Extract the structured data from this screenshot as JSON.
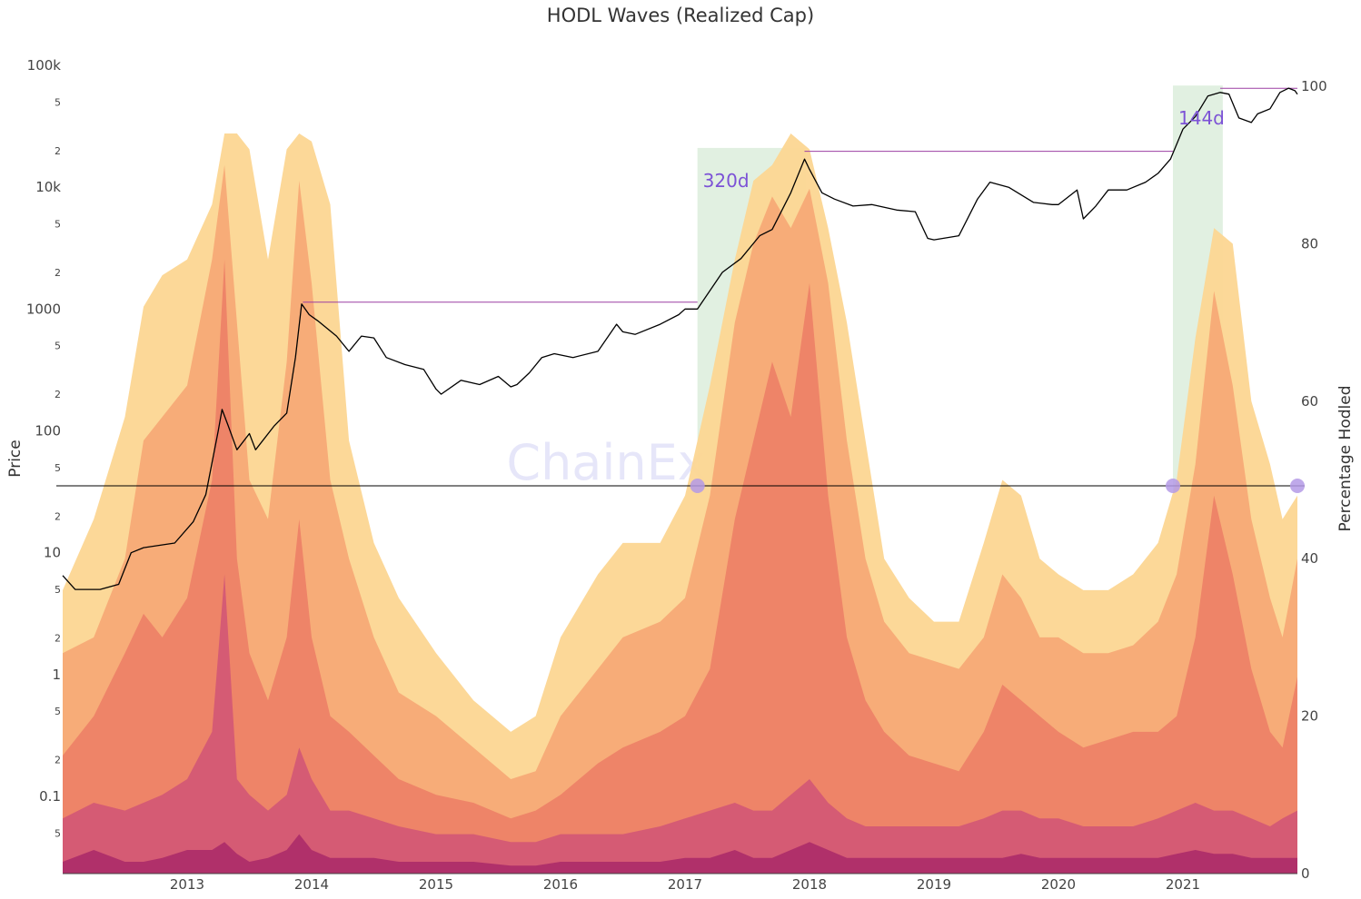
{
  "chart_data": {
    "type": "area",
    "title": "HODL Waves (Realized Cap)",
    "watermark": "ChainExposed",
    "y_left": {
      "label": "Price",
      "scale": "log",
      "range": [
        0.03,
        150000
      ],
      "major_ticks": [
        {
          "value": 0.1,
          "label": "0.1"
        },
        {
          "value": 1,
          "label": "1"
        },
        {
          "value": 10,
          "label": "10"
        },
        {
          "value": 100,
          "label": "100"
        },
        {
          "value": 1000,
          "label": "1000"
        },
        {
          "value": 10000,
          "label": "10k"
        },
        {
          "value": 100000,
          "label": "100k"
        }
      ],
      "minor_ticks": [
        {
          "value": 0.05,
          "label": "5"
        },
        {
          "value": 0.2,
          "label": "2"
        },
        {
          "value": 0.5,
          "label": "5"
        },
        {
          "value": 2,
          "label": "2"
        },
        {
          "value": 5,
          "label": "5"
        },
        {
          "value": 20,
          "label": "2"
        },
        {
          "value": 50,
          "label": "5"
        },
        {
          "value": 200,
          "label": "2"
        },
        {
          "value": 500,
          "label": "5"
        },
        {
          "value": 2000,
          "label": "2"
        },
        {
          "value": 5000,
          "label": "5"
        },
        {
          "value": 20000,
          "label": "2"
        },
        {
          "value": 50000,
          "label": "5"
        }
      ]
    },
    "y_right": {
      "label": "Percentage Hodled",
      "range": [
        0,
        100
      ],
      "ticks": [
        {
          "value": 0,
          "label": "0"
        },
        {
          "value": 20,
          "label": "20"
        },
        {
          "value": 40,
          "label": "40"
        },
        {
          "value": 60,
          "label": "60"
        },
        {
          "value": 80,
          "label": "80"
        },
        {
          "value": 100,
          "label": "100"
        }
      ]
    },
    "x": {
      "range": [
        2012.0,
        2021.92
      ],
      "ticks": [
        {
          "value": 2013,
          "label": "2013"
        },
        {
          "value": 2014,
          "label": "2014"
        },
        {
          "value": 2015,
          "label": "2015"
        },
        {
          "value": 2016,
          "label": "2016"
        },
        {
          "value": 2017,
          "label": "2017"
        },
        {
          "value": 2018,
          "label": "2018"
        },
        {
          "value": 2019,
          "label": "2019"
        },
        {
          "value": 2020,
          "label": "2020"
        },
        {
          "value": 2021,
          "label": "2021"
        }
      ]
    },
    "grid": false,
    "hodl_bands": {
      "colors": [
        "#b0306a",
        "#d55b74",
        "#ee8468",
        "#f7ac78",
        "#fcd692"
      ],
      "x": [
        2012.0,
        2012.25,
        2012.5,
        2012.65,
        2012.8,
        2013.0,
        2013.2,
        2013.3,
        2013.4,
        2013.5,
        2013.65,
        2013.8,
        2013.9,
        2014.0,
        2014.15,
        2014.3,
        2014.5,
        2014.7,
        2015.0,
        2015.3,
        2015.6,
        2015.8,
        2016.0,
        2016.3,
        2016.5,
        2016.8,
        2017.0,
        2017.2,
        2017.4,
        2017.55,
        2017.7,
        2017.85,
        2018.0,
        2018.15,
        2018.3,
        2018.45,
        2018.6,
        2018.8,
        2019.0,
        2019.2,
        2019.4,
        2019.55,
        2019.7,
        2019.85,
        2020.0,
        2020.2,
        2020.4,
        2020.6,
        2020.8,
        2020.95,
        2021.1,
        2021.25,
        2021.4,
        2021.55,
        2021.7,
        2021.8,
        2021.92
      ],
      "cumulative_percent": [
        [
          1.5,
          3,
          1.5,
          1.5,
          2,
          3,
          3,
          4,
          2.5,
          1.5,
          2,
          3,
          5,
          3,
          2,
          2,
          2,
          1.5,
          1.5,
          1.5,
          1,
          1,
          1.5,
          1.5,
          1.5,
          1.5,
          2,
          2,
          3,
          2,
          2,
          3,
          4,
          3,
          2,
          2,
          2,
          2,
          2,
          2,
          2,
          2,
          2.5,
          2,
          2,
          2,
          2,
          2,
          2,
          2.5,
          3,
          2.5,
          2.5,
          2,
          2,
          2,
          2
        ],
        [
          7,
          9,
          8,
          9,
          10,
          12,
          18,
          38,
          12,
          10,
          8,
          10,
          16,
          12,
          8,
          8,
          7,
          6,
          5,
          5,
          4,
          4,
          5,
          5,
          5,
          6,
          7,
          8,
          9,
          8,
          8,
          10,
          12,
          9,
          7,
          6,
          6,
          6,
          6,
          6,
          7,
          8,
          8,
          7,
          7,
          6,
          6,
          6,
          7,
          8,
          9,
          8,
          8,
          7,
          6,
          7,
          8
        ],
        [
          15,
          20,
          28,
          33,
          30,
          35,
          50,
          78,
          40,
          28,
          22,
          30,
          45,
          30,
          20,
          18,
          15,
          12,
          10,
          9,
          7,
          8,
          10,
          14,
          16,
          18,
          20,
          26,
          45,
          55,
          65,
          58,
          75,
          48,
          30,
          22,
          18,
          15,
          14,
          13,
          18,
          24,
          22,
          20,
          18,
          16,
          17,
          18,
          18,
          20,
          30,
          48,
          38,
          26,
          18,
          16,
          25
        ],
        [
          28,
          30,
          40,
          55,
          58,
          62,
          78,
          90,
          70,
          50,
          45,
          65,
          88,
          75,
          50,
          40,
          30,
          23,
          20,
          16,
          12,
          13,
          20,
          26,
          30,
          32,
          35,
          48,
          70,
          80,
          86,
          82,
          87,
          75,
          55,
          40,
          32,
          28,
          27,
          26,
          30,
          38,
          35,
          30,
          30,
          28,
          28,
          29,
          32,
          38,
          52,
          74,
          62,
          45,
          35,
          30,
          40
        ],
        [
          36,
          45,
          58,
          72,
          76,
          78,
          85,
          94,
          94,
          92,
          78,
          92,
          94,
          93,
          85,
          55,
          42,
          35,
          28,
          22,
          18,
          20,
          30,
          38,
          42,
          42,
          48,
          62,
          78,
          88,
          90,
          94,
          92,
          82,
          70,
          55,
          40,
          35,
          32,
          32,
          42,
          50,
          48,
          40,
          38,
          36,
          36,
          38,
          42,
          50,
          68,
          82,
          80,
          60,
          52,
          45,
          48
        ]
      ]
    },
    "price_series": {
      "color": "#000000",
      "x": [
        2012.0,
        2012.1,
        2012.3,
        2012.45,
        2012.55,
        2012.65,
        2012.9,
        2013.05,
        2013.15,
        2013.25,
        2013.28,
        2013.33,
        2013.4,
        2013.5,
        2013.55,
        2013.7,
        2013.8,
        2013.87,
        2013.92,
        2013.98,
        2014.05,
        2014.2,
        2014.3,
        2014.4,
        2014.5,
        2014.6,
        2014.75,
        2014.9,
        2015.0,
        2015.04,
        2015.2,
        2015.35,
        2015.5,
        2015.6,
        2015.65,
        2015.75,
        2015.85,
        2015.95,
        2016.1,
        2016.3,
        2016.45,
        2016.5,
        2016.6,
        2016.8,
        2016.95,
        2017.0,
        2017.1,
        2017.3,
        2017.45,
        2017.6,
        2017.7,
        2017.85,
        2017.96,
        2018.0,
        2018.1,
        2018.2,
        2018.35,
        2018.5,
        2018.7,
        2018.85,
        2018.95,
        2019.0,
        2019.2,
        2019.35,
        2019.45,
        2019.6,
        2019.8,
        2019.95,
        2020.0,
        2020.15,
        2020.2,
        2020.3,
        2020.4,
        2020.55,
        2020.7,
        2020.8,
        2020.9,
        2021.0,
        2021.1,
        2021.2,
        2021.3,
        2021.37,
        2021.45,
        2021.55,
        2021.6,
        2021.7,
        2021.78,
        2021.85,
        2021.9,
        2021.92
      ],
      "y": [
        6.5,
        5,
        5,
        5.5,
        10,
        11,
        12,
        18,
        30,
        100,
        150,
        110,
        70,
        95,
        70,
        110,
        140,
        400,
        1100,
        900,
        800,
        600,
        450,
        600,
        580,
        400,
        350,
        320,
        220,
        200,
        260,
        240,
        280,
        230,
        240,
        300,
        400,
        430,
        400,
        450,
        750,
        650,
        620,
        750,
        900,
        1000,
        1000,
        2000,
        2600,
        4000,
        4500,
        9000,
        17000,
        14000,
        9000,
        8000,
        7000,
        7200,
        6500,
        6300,
        3800,
        3700,
        4000,
        8000,
        11000,
        10000,
        7500,
        7200,
        7200,
        9500,
        5500,
        7000,
        9500,
        9500,
        11000,
        13000,
        17000,
        30000,
        38000,
        56000,
        60000,
        58000,
        37000,
        34000,
        40000,
        44000,
        60000,
        65000,
        62000,
        58000
      ]
    },
    "threshold_line": {
      "percent": 49.0,
      "color": "#000000"
    },
    "markers": [
      {
        "x": 2017.1,
        "percent": 49.0
      },
      {
        "x": 2020.92,
        "percent": 49.0
      },
      {
        "x": 2021.92,
        "percent": 49.0
      }
    ],
    "ath_lines": [
      {
        "x0": 2013.93,
        "x1": 2017.1,
        "price": 1140
      },
      {
        "x0": 2017.96,
        "x1": 2020.92,
        "price": 19700
      },
      {
        "x0": 2021.3,
        "x1": 2021.92,
        "price": 64800
      }
    ],
    "windows": [
      {
        "x0": 2017.1,
        "x1": 2017.97,
        "label": "320d",
        "top_price": 20000
      },
      {
        "x0": 2020.92,
        "x1": 2021.32,
        "label": "144d",
        "top_price": 65000
      }
    ],
    "colors": {
      "window_fill": "#dcefdc",
      "ath_line": "#9c3fa3",
      "marker": "#b49ae6"
    }
  }
}
